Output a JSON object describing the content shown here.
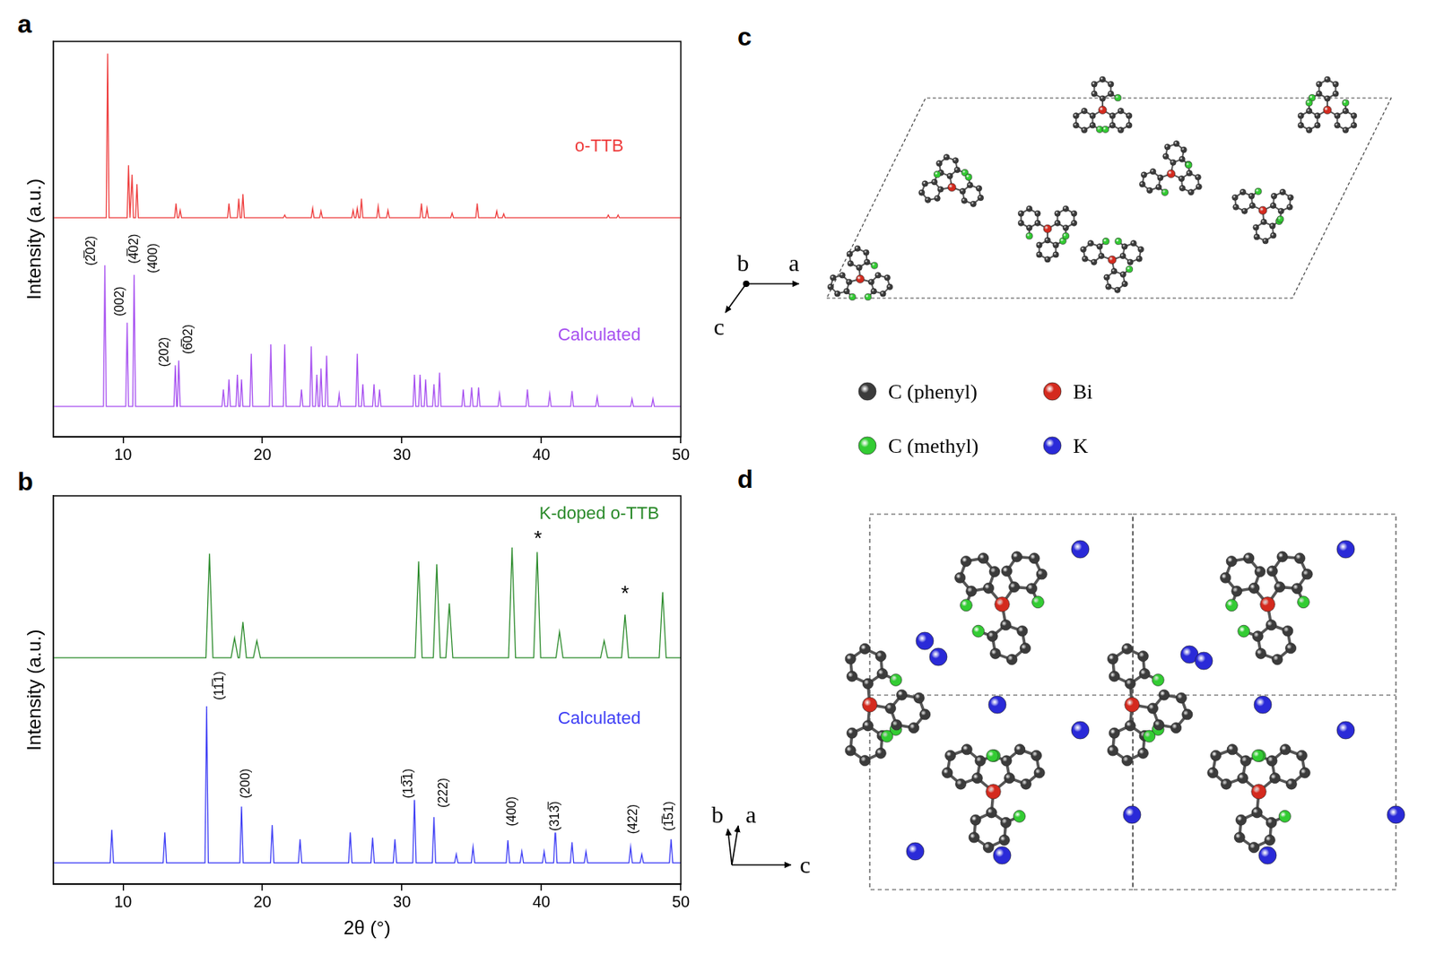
{
  "panel_labels": [
    "a",
    "b",
    "c",
    "d"
  ],
  "chart_data": [
    {
      "type": "line",
      "y_label": "Intensity (a.u.)",
      "xlim": [
        5,
        50
      ],
      "xticks": [
        10,
        20,
        30,
        40,
        50
      ],
      "ylim": [
        0,
        100
      ],
      "tick_labels": "x",
      "grid": false,
      "series": [
        {
          "name": "o-TTB",
          "color": "#ee3b3b",
          "x": [
            5,
            8.8,
            8.9,
            9.0,
            10.3,
            10.4,
            10.5,
            10.55,
            10.65,
            10.75,
            10.9,
            11.0,
            11.1,
            13.7,
            13.8,
            13.9,
            14.0,
            14.1,
            14.2,
            17.5,
            17.6,
            17.7,
            18.2,
            18.3,
            18.4,
            18.5,
            18.6,
            18.7,
            21.5,
            21.6,
            21.7,
            23.5,
            23.6,
            23.7,
            24.1,
            24.2,
            24.3,
            26.4,
            26.5,
            26.6,
            26.7,
            26.8,
            26.9,
            27.0,
            27.1,
            27.2,
            28.2,
            28.3,
            28.4,
            28.9,
            29.0,
            29.1,
            31.3,
            31.4,
            31.5,
            31.7,
            31.8,
            31.9,
            33.5,
            33.6,
            33.7,
            35.3,
            35.4,
            35.5,
            36.7,
            36.8,
            36.9,
            37.2,
            37.3,
            37.4,
            44.7,
            44.8,
            44.9,
            45.4,
            45.5,
            45.6,
            50
          ],
          "values": [
            55.4,
            55.4,
            96.9,
            55.4,
            55.4,
            68.7,
            55.4,
            55.4,
            66.3,
            55.4,
            55.4,
            63.9,
            55.4,
            55.4,
            59.0,
            55.4,
            55.4,
            57.3,
            55.4,
            55.4,
            59.0,
            55.4,
            55.4,
            60.2,
            55.4,
            55.4,
            61.4,
            55.4,
            55.4,
            56.1,
            55.4,
            55.4,
            57.8,
            55.4,
            55.4,
            57.1,
            55.4,
            55.4,
            57.3,
            55.4,
            55.4,
            57.8,
            55.4,
            55.4,
            60.2,
            55.4,
            55.4,
            58.3,
            55.4,
            55.4,
            57.3,
            55.4,
            55.4,
            59.0,
            55.4,
            55.4,
            57.8,
            55.4,
            55.4,
            56.6,
            55.4,
            55.4,
            59.0,
            55.4,
            55.4,
            57.1,
            55.4,
            55.4,
            56.4,
            55.4,
            55.4,
            56.1,
            55.4,
            55.4,
            56.1,
            55.4,
            55.4
          ]
        },
        {
          "name": "Calculated",
          "color": "#a64ff0",
          "x": [
            5,
            8.6,
            8.7,
            8.8,
            10.2,
            10.3,
            10.4,
            10.7,
            10.8,
            10.9,
            13.65,
            13.75,
            13.85,
            13.9,
            14.0,
            14.1,
            17.1,
            17.2,
            17.3,
            17.5,
            17.6,
            17.7,
            18.1,
            18.2,
            18.3,
            18.4,
            18.5,
            18.6,
            19.1,
            19.2,
            19.3,
            20.5,
            20.6,
            20.7,
            21.5,
            21.6,
            21.7,
            22.7,
            22.8,
            22.9,
            23.4,
            23.5,
            23.6,
            23.8,
            23.9,
            24.0,
            24.1,
            24.2,
            24.3,
            24.5,
            24.6,
            24.7,
            25.4,
            25.5,
            25.6,
            26.7,
            26.8,
            26.9,
            27.1,
            27.2,
            27.3,
            27.9,
            28.0,
            28.1,
            28.3,
            28.4,
            28.5,
            30.8,
            30.9,
            31.0,
            31.2,
            31.3,
            31.4,
            31.6,
            31.7,
            31.8,
            32.2,
            32.3,
            32.4,
            32.6,
            32.7,
            32.8,
            34.3,
            34.4,
            34.5,
            34.9,
            35.0,
            35.1,
            35.4,
            35.5,
            35.6,
            36.9,
            37.0,
            37.1,
            38.9,
            39.0,
            39.1,
            40.5,
            40.6,
            40.7,
            42.1,
            42.2,
            42.3,
            43.9,
            44.0,
            44.1,
            46.4,
            46.5,
            46.6,
            47.9,
            48.0,
            48.1,
            50
          ],
          "values": [
            7.7,
            7.7,
            43.4,
            7.7,
            7.7,
            28.9,
            7.7,
            7.7,
            41.0,
            7.7,
            7.7,
            18.1,
            7.7,
            7.7,
            19.3,
            7.7,
            7.7,
            12.0,
            7.7,
            7.7,
            14.5,
            7.7,
            7.7,
            15.7,
            7.7,
            7.7,
            14.5,
            7.7,
            7.7,
            21.0,
            7.7,
            7.7,
            23.4,
            7.7,
            7.7,
            23.4,
            7.7,
            7.7,
            12.0,
            7.7,
            7.7,
            22.9,
            7.7,
            7.7,
            15.7,
            7.7,
            7.7,
            17.3,
            7.7,
            7.7,
            20.5,
            7.7,
            7.7,
            10.8,
            7.7,
            7.7,
            21.0,
            7.7,
            7.7,
            13.3,
            7.7,
            7.7,
            13.3,
            7.7,
            7.7,
            12.0,
            7.7,
            7.7,
            15.7,
            7.7,
            7.7,
            15.7,
            7.7,
            7.7,
            14.5,
            7.7,
            7.7,
            13.3,
            7.7,
            7.7,
            16.2,
            7.7,
            7.7,
            12.0,
            7.7,
            7.7,
            12.5,
            7.7,
            7.7,
            12.5,
            7.7,
            7.7,
            10.8,
            7.7,
            7.7,
            12.0,
            7.7,
            7.7,
            10.8,
            7.7,
            7.7,
            11.6,
            7.7,
            7.7,
            10.1,
            7.7,
            7.7,
            9.6,
            7.7,
            7.7,
            9.6,
            7.7,
            7.7
          ]
        }
      ],
      "peak_labels": [
        {
          "text": "(2̅02)",
          "x": 7.73,
          "y": 42.9
        },
        {
          "text": "(002)",
          "x": 9.78,
          "y": 30.1
        },
        {
          "text": "(4̅02)",
          "x": 10.8,
          "y": 43.4
        },
        {
          "text": "(400)",
          "x": 12.2,
          "y": 41.0
        },
        {
          "text": "(202)",
          "x": 13.0,
          "y": 17.3
        },
        {
          "text": "(6̅02)",
          "x": 14.7,
          "y": 20.5
        }
      ]
    },
    {
      "type": "line",
      "x_label": "2θ (°)",
      "y_label": "Intensity (a.u.)",
      "xlim": [
        5,
        50
      ],
      "xticks": [
        10,
        20,
        30,
        40,
        50
      ],
      "ylim": [
        0,
        100
      ],
      "tick_labels": "x",
      "grid": false,
      "series": [
        {
          "name": "K-doped o-TTB",
          "color": "#2a8a2a",
          "x": [
            5,
            15.95,
            16.2,
            16.45,
            17.75,
            18.0,
            18.25,
            18.35,
            18.6,
            18.85,
            19.35,
            19.6,
            19.85,
            30.95,
            31.2,
            31.45,
            32.25,
            32.5,
            32.75,
            33.15,
            33.4,
            33.65,
            37.65,
            37.9,
            38.15,
            39.45,
            39.7,
            39.95,
            41.05,
            41.3,
            41.55,
            44.25,
            44.5,
            44.75,
            45.75,
            46.0,
            46.25,
            48.45,
            48.7,
            48.95,
            50
          ],
          "values": [
            58.3,
            58.3,
            85.1,
            58.3,
            58.3,
            63.4,
            58.3,
            58.3,
            67.5,
            58.3,
            58.3,
            62.7,
            58.3,
            58.3,
            83.1,
            58.3,
            58.3,
            82.4,
            58.3,
            58.3,
            72.3,
            58.3,
            58.3,
            86.7,
            58.3,
            58.3,
            85.5,
            58.3,
            58.3,
            65.0,
            58.3,
            58.3,
            62.7,
            58.3,
            58.3,
            69.4,
            58.3,
            58.3,
            75.2,
            58.3,
            58.3
          ]
        },
        {
          "name": "Calculated",
          "color": "#3d3df5",
          "x": [
            5,
            9.08,
            9.2,
            9.32,
            12.88,
            13.0,
            13.12,
            15.88,
            16.0,
            16.12,
            18.38,
            18.5,
            18.62,
            20.58,
            20.7,
            20.82,
            22.58,
            22.7,
            22.82,
            26.18,
            26.3,
            26.42,
            27.78,
            27.9,
            28.02,
            29.38,
            29.5,
            29.62,
            30.78,
            30.9,
            31.02,
            32.18,
            32.3,
            32.42,
            33.78,
            33.9,
            34.02,
            34.98,
            35.1,
            35.22,
            37.48,
            37.6,
            37.72,
            38.48,
            38.6,
            38.72,
            40.08,
            40.2,
            40.32,
            40.88,
            41.0,
            41.12,
            42.08,
            42.2,
            42.32,
            43.08,
            43.2,
            43.32,
            46.28,
            46.4,
            46.52,
            47.08,
            47.2,
            47.32,
            49.18,
            49.3,
            49.42,
            50
          ],
          "values": [
            5.5,
            5.5,
            14.0,
            5.5,
            5.5,
            13.3,
            5.5,
            5.5,
            45.8,
            5.5,
            5.5,
            20.0,
            5.5,
            5.5,
            15.2,
            5.5,
            5.5,
            11.6,
            5.5,
            5.5,
            13.3,
            5.5,
            5.5,
            12.0,
            5.5,
            5.5,
            11.6,
            5.5,
            5.5,
            22.2,
            5.5,
            5.5,
            17.3,
            5.5,
            5.5,
            7.7,
            5.5,
            5.5,
            9.6,
            5.5,
            5.5,
            11.3,
            5.5,
            5.5,
            8.4,
            5.5,
            5.5,
            8.4,
            5.5,
            5.5,
            14.5,
            5.5,
            5.5,
            10.8,
            5.5,
            5.5,
            8.4,
            5.5,
            5.5,
            9.6,
            5.5,
            5.5,
            7.7,
            5.5,
            5.5,
            11.6,
            5.5,
            5.5
          ]
        }
      ],
      "peak_labels": [
        {
          "text": "(11̅1)",
          "x": 16.95,
          "y": 47.0
        },
        {
          "text": "(200)",
          "x": 18.8,
          "y": 21.7
        },
        {
          "text": "(13̅1)",
          "x": 30.5,
          "y": 21.7
        },
        {
          "text": "(222)",
          "x": 33.0,
          "y": 19.3
        },
        {
          "text": "(400)",
          "x": 37.9,
          "y": 14.5
        },
        {
          "text": "(313̅)",
          "x": 41.0,
          "y": 13.3
        },
        {
          "text": "(422)",
          "x": 46.6,
          "y": 12.5
        },
        {
          "text": "(1̅51)",
          "x": 49.2,
          "y": 13.3
        }
      ],
      "annotations": [
        {
          "text": "*",
          "x": 39.75,
          "y": 88.7
        },
        {
          "text": "*",
          "x": 46.0,
          "y": 74.5
        }
      ]
    }
  ],
  "structures": {
    "legend": [
      {
        "label": "C (phenyl)",
        "color": "#3b3b3b"
      },
      {
        "label": "Bi",
        "color": "#d42a1e"
      },
      {
        "label": "C (methyl)",
        "color": "#33cc33"
      },
      {
        "label": "K",
        "color": "#2a2ad8"
      }
    ],
    "panel_c": {
      "axes": [
        "b",
        "a",
        "c"
      ]
    },
    "panel_d": {
      "axes": [
        "b",
        "a",
        "c"
      ]
    }
  }
}
